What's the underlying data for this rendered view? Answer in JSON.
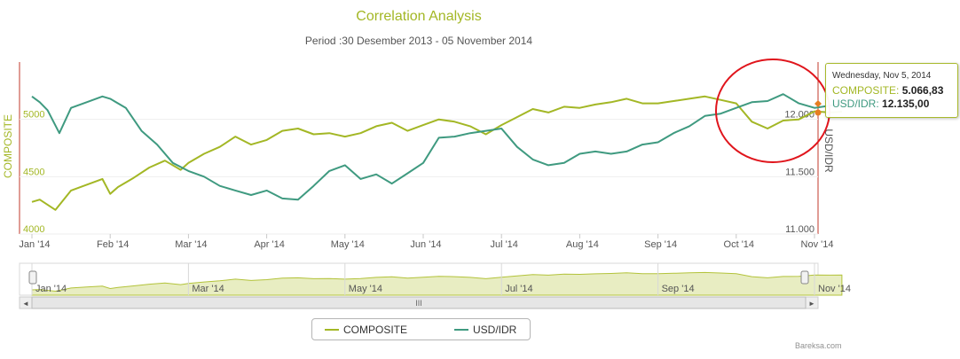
{
  "chart_data": {
    "type": "line",
    "title": "Correlation Analysis",
    "subtitle": "Period :30 Desember 2013 - 05 November 2014",
    "x_tick_labels": [
      "Jan '14",
      "Feb '14",
      "Mar '14",
      "Apr '14",
      "May '14",
      "Jun '14",
      "Jul '14",
      "Aug '14",
      "Sep '14",
      "Oct '14",
      "Nov '14"
    ],
    "navigator_tick_labels": [
      "Jan '14",
      "Mar '14",
      "May '14",
      "Jul '14",
      "Sep '14",
      "Nov '14"
    ],
    "y_left": {
      "label": "COMPOSITE",
      "ticks": [
        "4000",
        "4500",
        "5000"
      ],
      "range": [
        4000,
        5500
      ]
    },
    "y_right": {
      "label": "USD/IDR",
      "ticks": [
        "11.000",
        "11.500",
        "12.000"
      ],
      "range": [
        11000,
        12500
      ]
    },
    "series": [
      {
        "name": "COMPOSITE",
        "color": "#a3b725",
        "axis": "left",
        "x": [
          0,
          0.1,
          0.3,
          0.5,
          0.7,
          0.9,
          1,
          1.1,
          1.3,
          1.5,
          1.7,
          1.9,
          2,
          2.2,
          2.4,
          2.6,
          2.8,
          3,
          3.2,
          3.4,
          3.6,
          3.8,
          4,
          4.2,
          4.4,
          4.6,
          4.8,
          5,
          5.2,
          5.4,
          5.6,
          5.8,
          6,
          6.2,
          6.4,
          6.6,
          6.8,
          7,
          7.2,
          7.4,
          7.6,
          7.8,
          8,
          8.2,
          8.4,
          8.6,
          8.8,
          9,
          9.2,
          9.4,
          9.6,
          9.8,
          10,
          10.2,
          10.35
        ],
        "values": [
          4280,
          4300,
          4210,
          4380,
          4430,
          4480,
          4350,
          4410,
          4490,
          4580,
          4640,
          4560,
          4620,
          4700,
          4760,
          4850,
          4780,
          4820,
          4900,
          4920,
          4870,
          4880,
          4850,
          4880,
          4940,
          4970,
          4900,
          4950,
          5000,
          4980,
          4940,
          4870,
          4950,
          5020,
          5090,
          5060,
          5110,
          5100,
          5130,
          5150,
          5180,
          5140,
          5140,
          5160,
          5180,
          5200,
          5170,
          5140,
          4980,
          4920,
          4990,
          5000,
          5070,
          5060,
          5067
        ]
      },
      {
        "name": "USD/IDR",
        "color": "#3f9a80",
        "axis": "right",
        "x": [
          0,
          0.1,
          0.2,
          0.35,
          0.5,
          0.7,
          0.9,
          1,
          1.2,
          1.4,
          1.6,
          1.8,
          2,
          2.2,
          2.4,
          2.6,
          2.8,
          3,
          3.2,
          3.4,
          3.6,
          3.8,
          4,
          4.2,
          4.4,
          4.6,
          4.8,
          5,
          5.2,
          5.4,
          5.6,
          5.8,
          6,
          6.2,
          6.4,
          6.6,
          6.8,
          7,
          7.2,
          7.4,
          7.6,
          7.8,
          8,
          8.2,
          8.4,
          8.6,
          8.8,
          9,
          9.2,
          9.4,
          9.6,
          9.8,
          10,
          10.2,
          10.35
        ],
        "values": [
          12200,
          12150,
          12080,
          11880,
          12100,
          12150,
          12200,
          12180,
          12100,
          11900,
          11780,
          11620,
          11550,
          11500,
          11420,
          11380,
          11340,
          11380,
          11310,
          11300,
          11420,
          11550,
          11600,
          11480,
          11520,
          11440,
          11530,
          11620,
          11840,
          11850,
          11880,
          11900,
          11920,
          11760,
          11650,
          11600,
          11620,
          11700,
          11720,
          11700,
          11720,
          11780,
          11800,
          11880,
          11940,
          12030,
          12050,
          12100,
          12150,
          12160,
          12220,
          12140,
          12100,
          12120,
          12135
        ]
      }
    ],
    "tooltip": {
      "date": "Wednesday, Nov 5, 2014",
      "composite_label": "COMPOSITE:",
      "composite_value": "5.066,83",
      "usd_label": "USD/IDR:",
      "usd_value": "12.135,00"
    },
    "legend": [
      "COMPOSITE",
      "USD/IDR"
    ],
    "navigator_handle_glyph": "III",
    "credit": "Bareksa.com",
    "annotation": "red circle highlighting Oct-Nov 2014"
  }
}
